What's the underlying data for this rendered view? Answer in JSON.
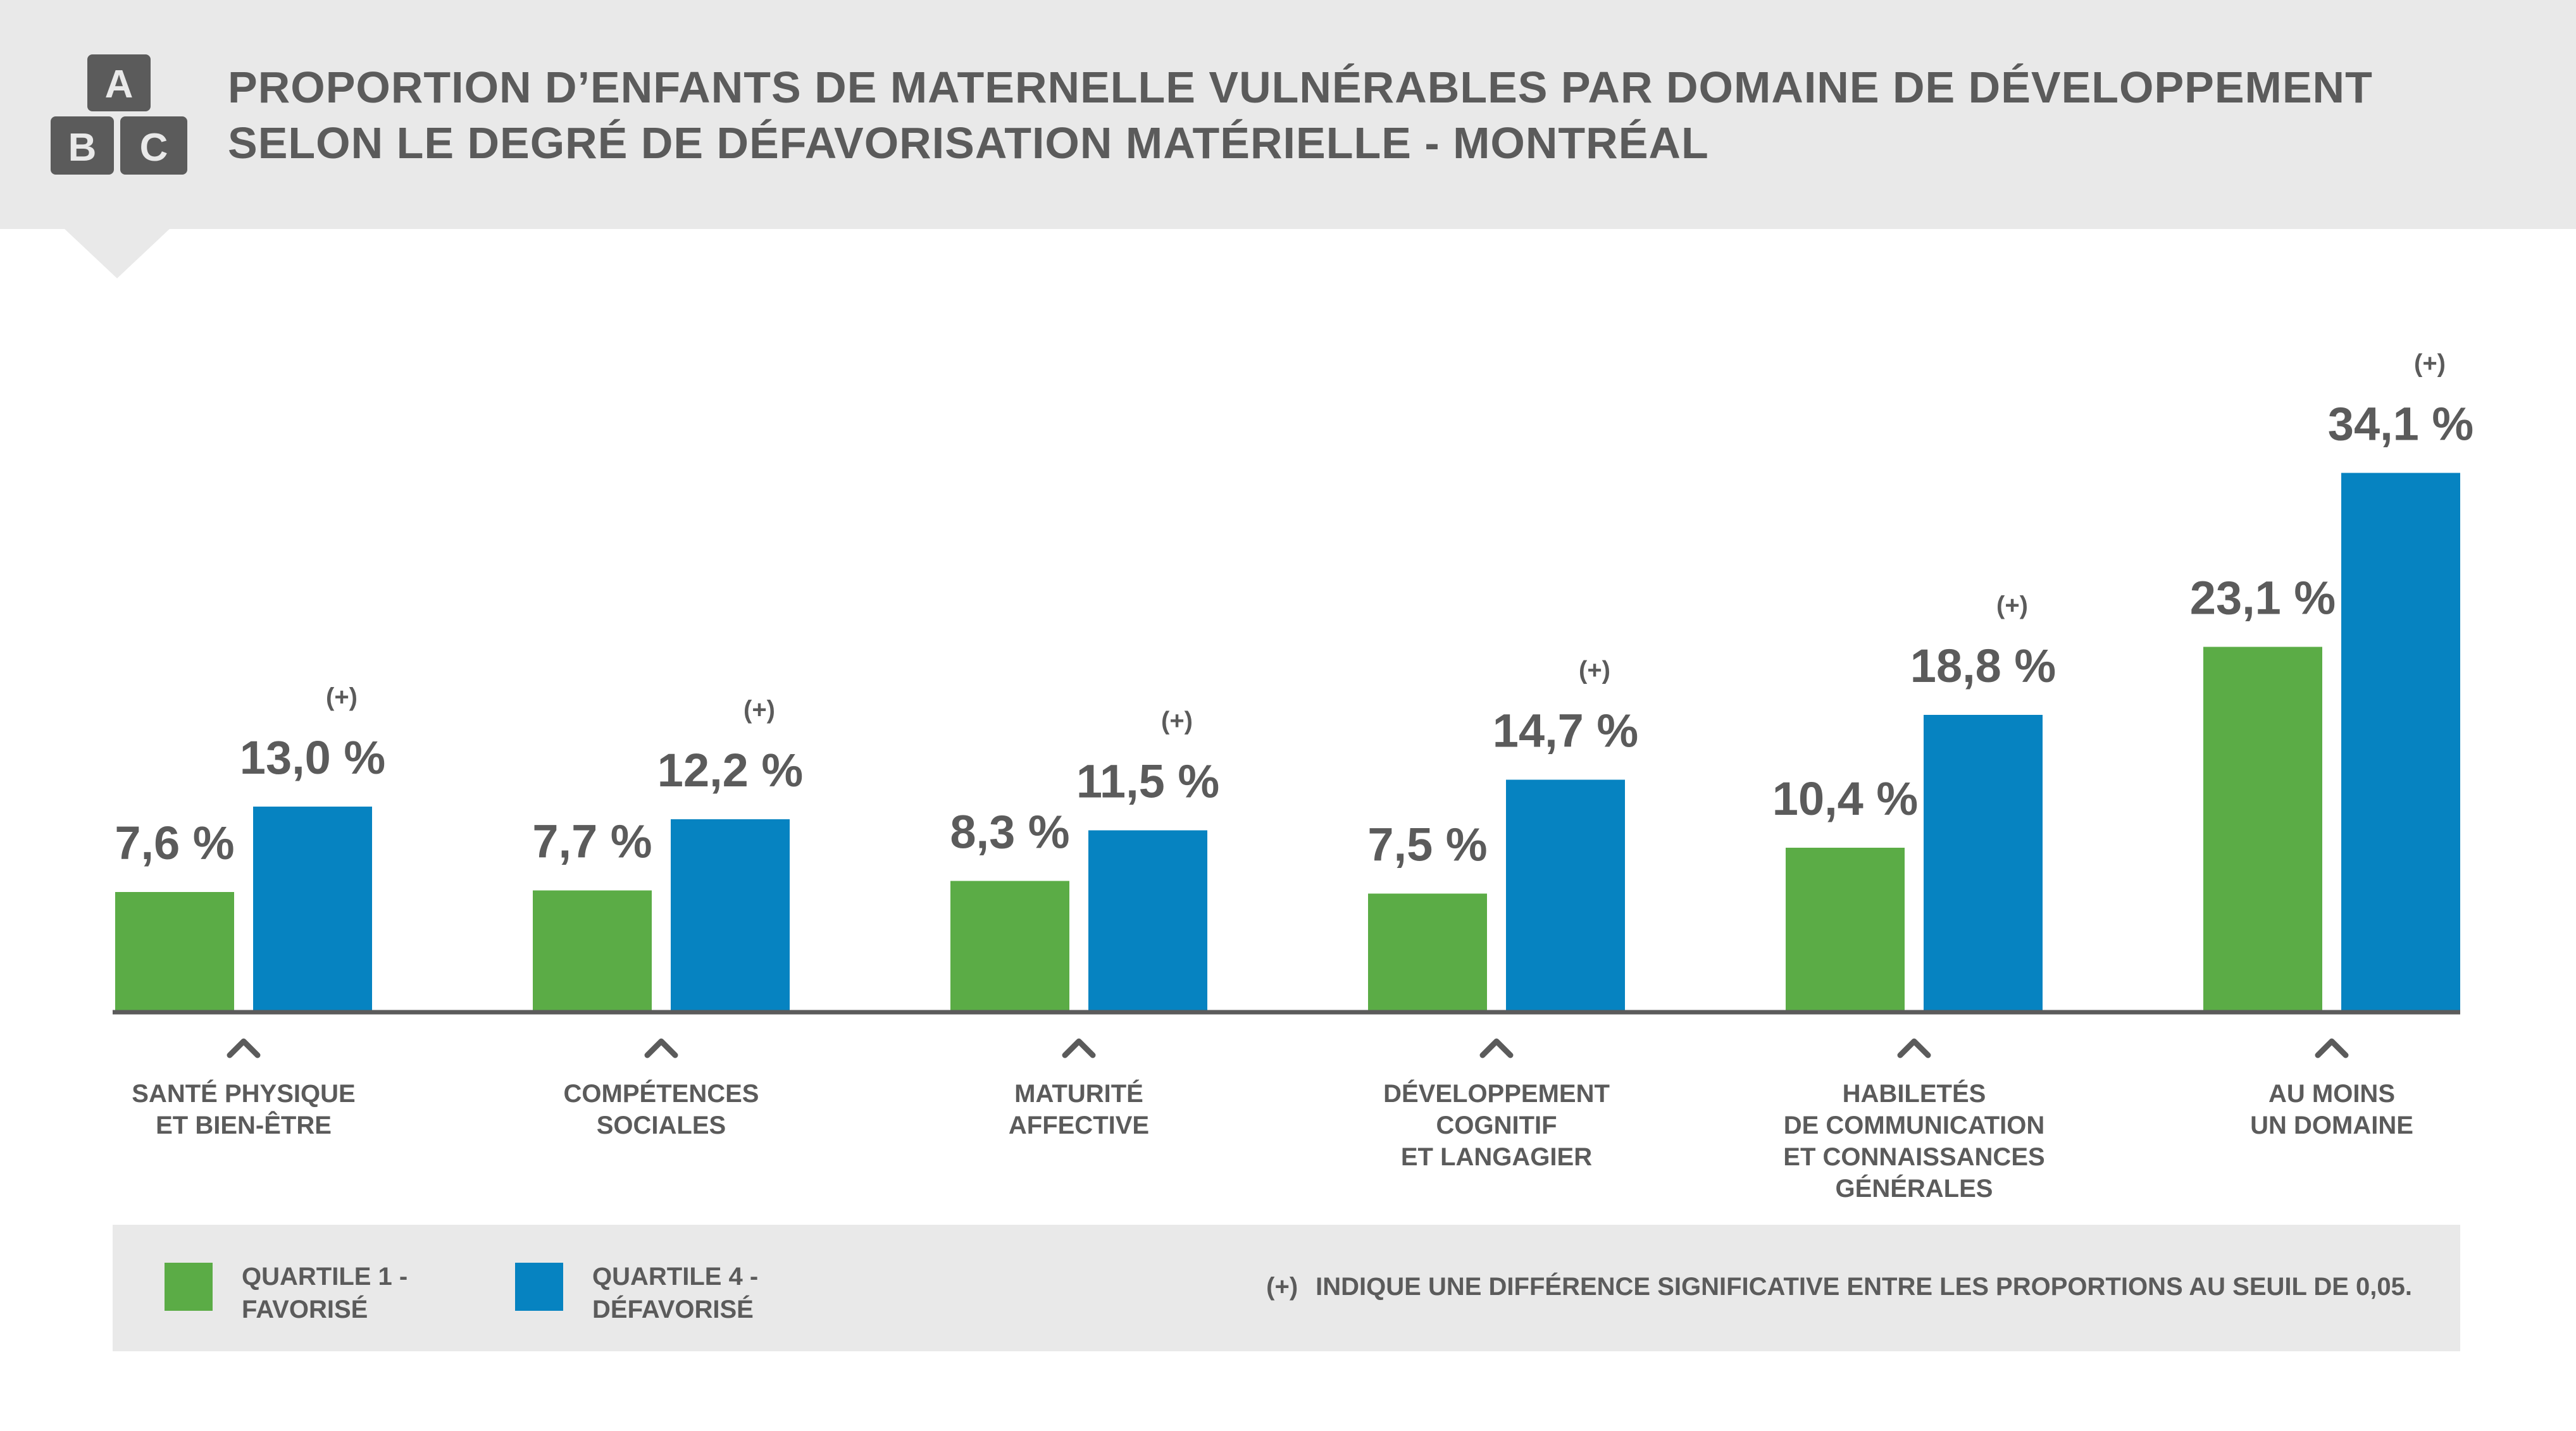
{
  "title": {
    "line1": "PROPORTION D’ENFANTS DE MATERNELLE VULNÉRABLES PAR DOMAINE DE DÉVELOPPEMENT",
    "line2": "SELON LE DEGRÉ DE DÉFAVORISATION MATÉRIELLE - MONTRÉAL"
  },
  "logo": {
    "letters": [
      "A",
      "B",
      "C"
    ],
    "icon": "abc-blocks-icon"
  },
  "colors": {
    "q1": "#5bac46",
    "q4": "#0683c1",
    "text": "#5b5b5b",
    "panel": "#e9e9e9",
    "axis": "#5b5b5b"
  },
  "chart_data": {
    "type": "bar",
    "categories": [
      [
        "SANTÉ PHYSIQUE",
        "ET BIEN-ÊTRE"
      ],
      [
        "COMPÉTENCES",
        "SOCIALES"
      ],
      [
        "MATURITÉ",
        "AFFECTIVE"
      ],
      [
        "DÉVELOPPEMENT",
        "COGNITIF",
        "ET LANGAGIER"
      ],
      [
        "HABILETÉS",
        "DE COMMUNICATION",
        "ET CONNAISSANCES",
        "GÉNÉRALES"
      ],
      [
        "AU MOINS",
        "UN DOMAINE"
      ]
    ],
    "series": [
      {
        "name": "QUARTILE 1 - FAVORISÉ",
        "values": [
          7.6,
          7.7,
          8.3,
          7.5,
          10.4,
          23.1
        ],
        "labels": [
          "7,6 %",
          "7,7 %",
          "8,3 %",
          "7,5 %",
          "10,4 %",
          "23,1 %"
        ]
      },
      {
        "name": "QUARTILE 4 - DÉFAVORISÉ",
        "values": [
          13.0,
          12.2,
          11.5,
          14.7,
          18.8,
          34.1
        ],
        "labels": [
          "13,0 %",
          "12,2 %",
          "11,5 %",
          "14,7 %",
          "18,8 %",
          "34,1 %"
        ]
      }
    ],
    "significant": [
      true,
      true,
      true,
      true,
      true,
      true
    ],
    "significance_mark": "(+)",
    "ylim": [
      0,
      40
    ],
    "grid": false,
    "legend": "bottom"
  },
  "legend": {
    "q1_lines": [
      "QUARTILE 1 -",
      "FAVORISÉ"
    ],
    "q4_lines": [
      "QUARTILE 4 -",
      "DÉFAVORISÉ"
    ]
  },
  "footnote": {
    "mark": "(+)",
    "text": "INDIQUE UNE DIFFÉRENCE SIGNIFICATIVE ENTRE LES PROPORTIONS AU SEUIL DE 0,05."
  }
}
